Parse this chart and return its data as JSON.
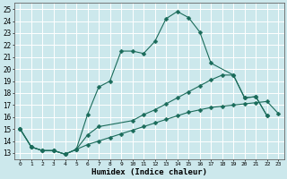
{
  "xlabel": "Humidex (Indice chaleur)",
  "bg_color": "#cce8ec",
  "grid_color": "#ffffff",
  "line_color": "#1a6b5a",
  "xlim": [
    -0.5,
    23.5
  ],
  "ylim": [
    12.5,
    25.5
  ],
  "yticks": [
    13,
    14,
    15,
    16,
    17,
    18,
    19,
    20,
    21,
    22,
    23,
    24,
    25
  ],
  "xticks": [
    0,
    1,
    2,
    3,
    4,
    5,
    6,
    7,
    8,
    9,
    10,
    11,
    12,
    13,
    14,
    15,
    16,
    17,
    18,
    19,
    20,
    21,
    22,
    23
  ],
  "line1_x": [
    0,
    1,
    2,
    3,
    4,
    5,
    6,
    7,
    8,
    9,
    10,
    11,
    12,
    13,
    14,
    15,
    16,
    17,
    19,
    20,
    21,
    22
  ],
  "line1_y": [
    15.0,
    13.5,
    13.2,
    13.2,
    12.9,
    13.3,
    16.2,
    18.5,
    19.0,
    21.5,
    21.5,
    21.3,
    22.3,
    24.2,
    24.8,
    24.3,
    23.1,
    20.5,
    19.5,
    17.6,
    17.7,
    16.1
  ],
  "line2_x": [
    0,
    1,
    2,
    3,
    4,
    5,
    6,
    7,
    10,
    11,
    12,
    13,
    14,
    15,
    16,
    17,
    18,
    19,
    20,
    21,
    22
  ],
  "line2_y": [
    15.0,
    13.5,
    13.2,
    13.2,
    12.9,
    13.3,
    14.5,
    15.2,
    15.7,
    16.2,
    16.6,
    17.1,
    17.6,
    18.1,
    18.6,
    19.1,
    19.5,
    19.5,
    17.6,
    17.7,
    16.1
  ],
  "line3_x": [
    0,
    1,
    2,
    3,
    4,
    5,
    6,
    7,
    8,
    9,
    10,
    11,
    12,
    13,
    14,
    15,
    16,
    17,
    18,
    19,
    20,
    21,
    22,
    23
  ],
  "line3_y": [
    15.0,
    13.5,
    13.2,
    13.2,
    12.9,
    13.3,
    13.7,
    14.0,
    14.3,
    14.6,
    14.9,
    15.2,
    15.5,
    15.8,
    16.1,
    16.4,
    16.6,
    16.8,
    16.9,
    17.0,
    17.1,
    17.2,
    17.3,
    16.3
  ]
}
